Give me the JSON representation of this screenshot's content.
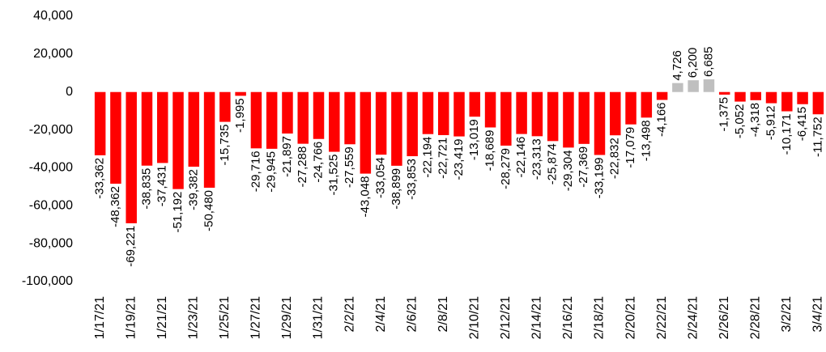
{
  "chart_data": {
    "type": "bar",
    "categories": [
      "1/17/21",
      null,
      "1/19/21",
      null,
      "1/21/21",
      null,
      "1/23/21",
      null,
      "1/25/21",
      null,
      "1/27/21",
      null,
      "1/29/21",
      null,
      "1/31/21",
      null,
      "2/2/21",
      null,
      "2/4/21",
      null,
      "2/6/21",
      null,
      "2/8/21",
      null,
      "2/10/21",
      null,
      "2/12/21",
      null,
      "2/14/21",
      null,
      "2/16/21",
      null,
      "2/18/21",
      null,
      "2/20/21",
      null,
      "2/22/21",
      null,
      "2/24/21",
      null,
      "2/26/21",
      null,
      "2/28/21",
      null,
      "3/2/21",
      null,
      "3/4/21"
    ],
    "values": [
      -33362,
      -48362,
      -69221,
      -38835,
      -37431,
      -51192,
      -39382,
      -50480,
      -15735,
      -1995,
      -29716,
      -29945,
      -21897,
      -27288,
      -24766,
      -31525,
      -27559,
      -43048,
      -33054,
      -38899,
      -33853,
      -22194,
      -22721,
      -23419,
      -13019,
      -18689,
      -28279,
      -22146,
      -23313,
      -25874,
      -29304,
      -27369,
      -33199,
      -22832,
      -17079,
      -13498,
      -4166,
      4726,
      6200,
      6685,
      -1375,
      -5052,
      -4318,
      -5912,
      -10171,
      -6415,
      -11752
    ],
    "value_labels": [
      "-33,362",
      "-48,362",
      "-69,221",
      "-38,835",
      "-37,431",
      "-51,192",
      "-39,382",
      "-50,480",
      "-15,735",
      "-1,995",
      "-29,716",
      "-29,945",
      "-21,897",
      "-27,288",
      "-24,766",
      "-31,525",
      "-27,559",
      "-43,048",
      "-33,054",
      "-38,899",
      "-33,853",
      "-22,194",
      "-22,721",
      "-23,419",
      "-13,019",
      "-18,689",
      "-28,279",
      "-22,146",
      "-23,313",
      "-25,874",
      "-29,304",
      "-27,369",
      "-33,199",
      "-22,832",
      "-17,079",
      "-13,498",
      "-4,166",
      "4,726",
      "6,200",
      "6,685",
      "-1,375",
      "-5,052",
      "-4,318",
      "-5,912",
      "-10,171",
      "-6,415",
      "-11,752"
    ],
    "color": "#ff0000",
    "positive_color": "#bfbfbf",
    "ylim": [
      -100000,
      40000
    ],
    "yticks": [
      {
        "value": -100000,
        "label": "-100,000"
      },
      {
        "value": -80000,
        "label": "-80,000"
      },
      {
        "value": -60000,
        "label": "-60,000"
      },
      {
        "value": -40000,
        "label": "-40,000"
      },
      {
        "value": -20000,
        "label": "-20,000"
      },
      0,
      {
        "value": 20000,
        "label": "20,000"
      },
      {
        "value": 40000,
        "label": "40,000"
      }
    ],
    "grid": false
  }
}
